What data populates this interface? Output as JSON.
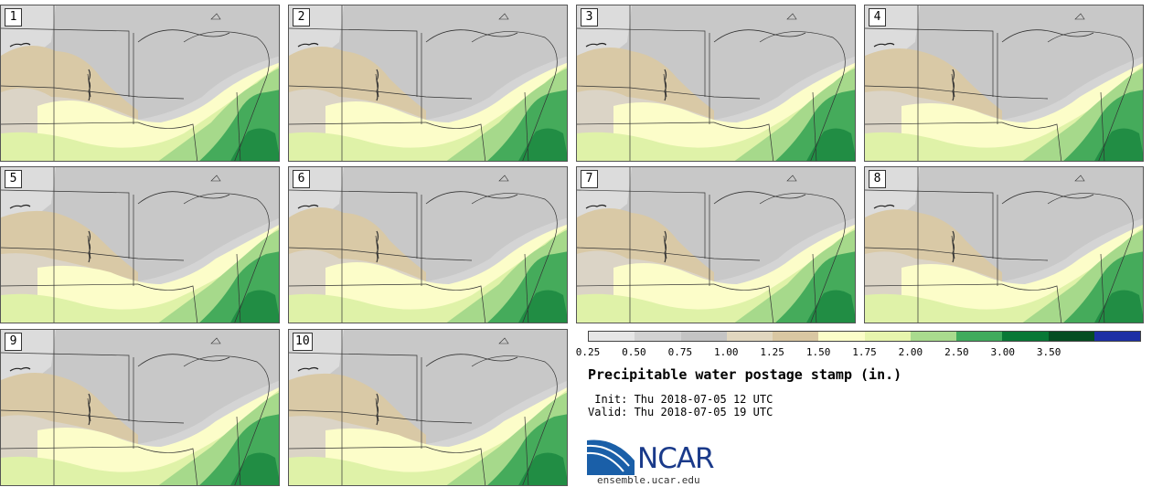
{
  "panels": [
    {
      "label": "1"
    },
    {
      "label": "2"
    },
    {
      "label": "3"
    },
    {
      "label": "4"
    },
    {
      "label": "5"
    },
    {
      "label": "6"
    },
    {
      "label": "7"
    },
    {
      "label": "8"
    },
    {
      "label": "9"
    },
    {
      "label": "10"
    }
  ],
  "colorbar": {
    "ticks": [
      "0.25",
      "0.50",
      "0.75",
      "1.00",
      "1.25",
      "1.50",
      "1.75",
      "2.00",
      "2.50",
      "3.00",
      "3.50"
    ],
    "bins": [
      {
        "color": "#e6e6e6"
      },
      {
        "color": "#d2d2d2"
      },
      {
        "color": "#c4c4c4"
      },
      {
        "color": "#e1d7bf"
      },
      {
        "color": "#d9c7a2"
      },
      {
        "color": "#fbfdc8"
      },
      {
        "color": "#e7f5ad"
      },
      {
        "color": "#a9db8e"
      },
      {
        "color": "#40ab5d"
      },
      {
        "color": "#087836"
      },
      {
        "color": "#054d22"
      },
      {
        "color": "#1d2fa5"
      }
    ]
  },
  "title": "Precipitable water postage stamp (in.)",
  "init_text": " Init: Thu 2018-07-05 12 UTC",
  "valid_text": "Valid: Thu 2018-07-05 19 UTC",
  "logo_text": "NCAR",
  "site_text": "ensemble.ucar.edu",
  "map_colors": {
    "dry_gray": "#c8c8c8",
    "light_gray": "#dcdcdc",
    "tan": "#d9c9a6",
    "pale_yellow": "#fcfdc9",
    "light_green": "#dff2a8",
    "green": "#a6d98b",
    "mid_green": "#45ab5b",
    "dark_green": "#0a7a36",
    "border": "#333333"
  }
}
